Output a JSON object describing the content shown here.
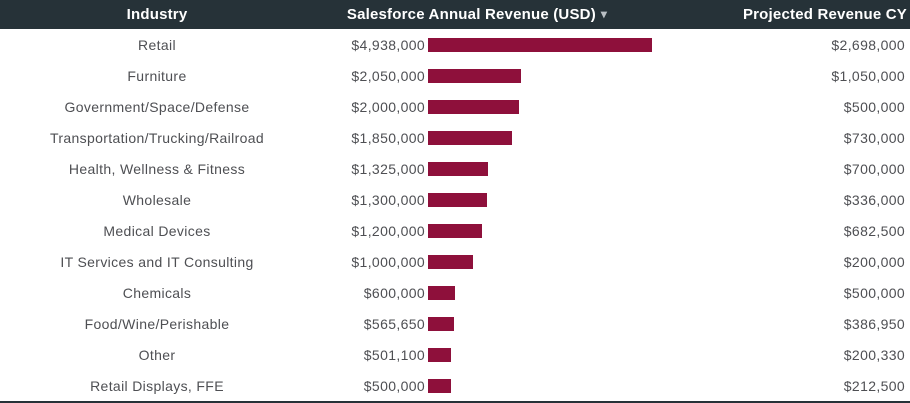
{
  "header": {
    "industry_label": "Industry",
    "revenue_label": "Salesforce Annual Revenue (USD)",
    "sort_caret": "▾",
    "projected_label": "Projected Revenue CY"
  },
  "rows": [
    {
      "industry": "Retail",
      "revenue_display": "$4,938,000",
      "revenue": 4938000,
      "projected_display": "$2,698,000",
      "projected": 2698000
    },
    {
      "industry": "Furniture",
      "revenue_display": "$2,050,000",
      "revenue": 2050000,
      "projected_display": "$1,050,000",
      "projected": 1050000
    },
    {
      "industry": "Government/Space/Defense",
      "revenue_display": "$2,000,000",
      "revenue": 2000000,
      "projected_display": "$500,000",
      "projected": 500000
    },
    {
      "industry": "Transportation/Trucking/Railroad",
      "revenue_display": "$1,850,000",
      "revenue": 1850000,
      "projected_display": "$730,000",
      "projected": 730000
    },
    {
      "industry": "Health, Wellness & Fitness",
      "revenue_display": "$1,325,000",
      "revenue": 1325000,
      "projected_display": "$700,000",
      "projected": 700000
    },
    {
      "industry": "Wholesale",
      "revenue_display": "$1,300,000",
      "revenue": 1300000,
      "projected_display": "$336,000",
      "projected": 336000
    },
    {
      "industry": "Medical Devices",
      "revenue_display": "$1,200,000",
      "revenue": 1200000,
      "projected_display": "$682,500",
      "projected": 682500
    },
    {
      "industry": "IT Services and IT Consulting",
      "revenue_display": "$1,000,000",
      "revenue": 1000000,
      "projected_display": "$200,000",
      "projected": 200000
    },
    {
      "industry": "Chemicals",
      "revenue_display": "$600,000",
      "revenue": 600000,
      "projected_display": "$500,000",
      "projected": 500000
    },
    {
      "industry": "Food/Wine/Perishable",
      "revenue_display": "$565,650",
      "revenue": 565650,
      "projected_display": "$386,950",
      "projected": 386950
    },
    {
      "industry": "Other",
      "revenue_display": "$501,100",
      "revenue": 501100,
      "projected_display": "$200,330",
      "projected": 200330
    },
    {
      "industry": "Retail Displays, FFE",
      "revenue_display": "$500,000",
      "revenue": 500000,
      "projected_display": "$212,500",
      "projected": 212500
    }
  ],
  "chart_data": {
    "type": "bar",
    "orientation": "horizontal",
    "title": "",
    "categories": [
      "Retail",
      "Furniture",
      "Government/Space/Defense",
      "Transportation/Trucking/Railroad",
      "Health, Wellness & Fitness",
      "Wholesale",
      "Medical Devices",
      "IT Services and IT Consulting",
      "Chemicals",
      "Food/Wine/Perishable",
      "Other",
      "Retail Displays, FFE"
    ],
    "series": [
      {
        "name": "Salesforce Annual Revenue (USD)",
        "values": [
          4938000,
          2050000,
          2000000,
          1850000,
          1325000,
          1300000,
          1200000,
          1000000,
          600000,
          565650,
          501100,
          500000
        ]
      },
      {
        "name": "Projected Revenue CY",
        "values": [
          2698000,
          1050000,
          500000,
          730000,
          700000,
          336000,
          682500,
          200000,
          500000,
          386950,
          200330,
          212500
        ]
      }
    ],
    "xlim": [
      0,
      4938000
    ],
    "bars_shown_for": "Salesforce Annual Revenue (USD)",
    "legend": "none",
    "grid": false,
    "bar_color": "#8E103B"
  },
  "colors": {
    "header_bg": "#263238",
    "header_text": "#FFFFFF",
    "row_text": "#4E4F53",
    "bar": "#8E103B"
  }
}
